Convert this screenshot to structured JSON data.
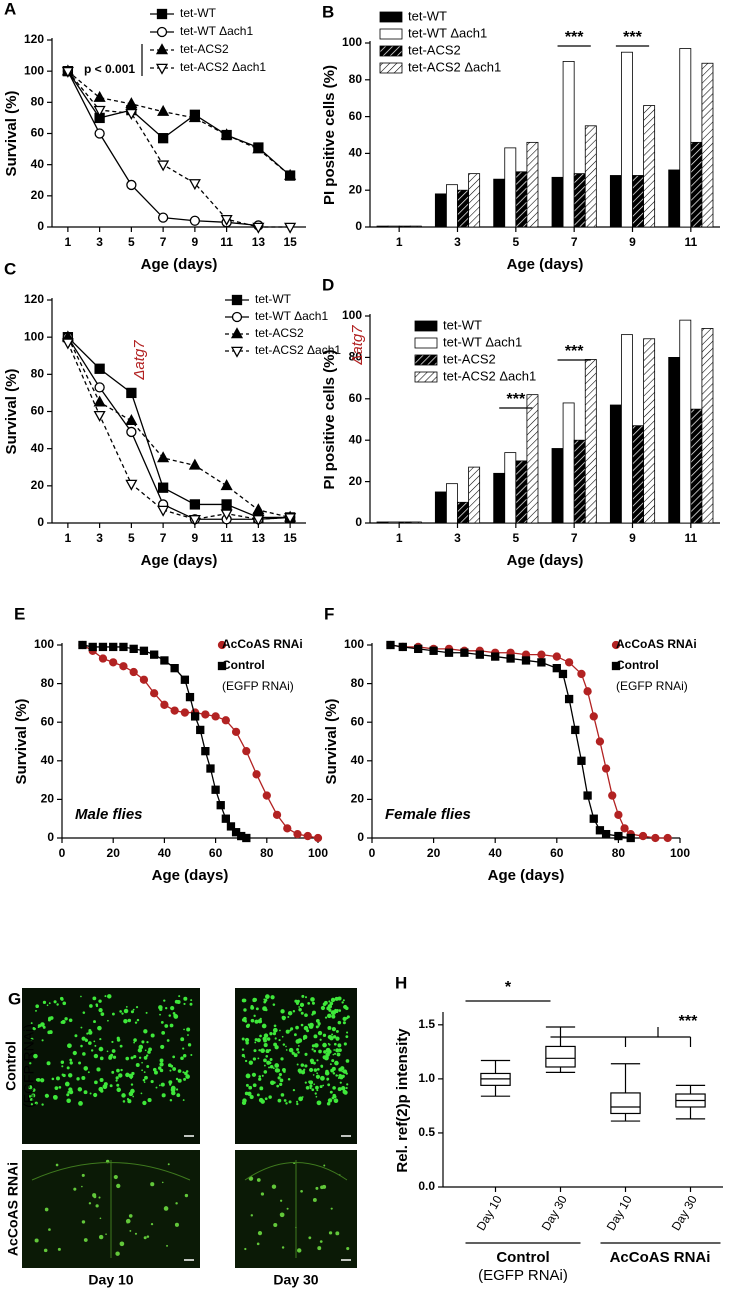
{
  "chart_data": [
    {
      "type": "line",
      "panel_label": "A",
      "x_label": "Age (days)",
      "y_label": "Survival (%)",
      "annotation": "p < 0.001",
      "x": [
        1,
        3,
        5,
        7,
        9,
        11,
        13,
        15
      ],
      "xlim": [
        0,
        16
      ],
      "xticks": [
        1,
        3,
        5,
        7,
        9,
        11,
        13,
        15
      ],
      "ylim": [
        0,
        120
      ],
      "yticks": [
        0,
        20,
        40,
        60,
        80,
        100,
        120
      ],
      "series": [
        {
          "name": "tet-WT",
          "color": "#000000",
          "marker": "square",
          "filled": true,
          "dash": "solid",
          "values": [
            100,
            70,
            75,
            57,
            72,
            59,
            51,
            33
          ]
        },
        {
          "name": "tet-WT Δach1",
          "color": "#000000",
          "marker": "circle",
          "filled": false,
          "dash": "solid",
          "values": [
            100,
            60,
            27,
            6,
            4,
            3,
            1,
            null
          ]
        },
        {
          "name": "tet-ACS2",
          "color": "#000000",
          "marker": "triangle",
          "filled": true,
          "dash": "dashed",
          "values": [
            100,
            83,
            79,
            74,
            70,
            59,
            50,
            33
          ]
        },
        {
          "name": "tet-ACS2 Δach1",
          "color": "#000000",
          "marker": "triangle-down",
          "filled": false,
          "dash": "dashed",
          "values": [
            100,
            75,
            73,
            40,
            28,
            5,
            0,
            0
          ]
        }
      ]
    },
    {
      "type": "bar",
      "panel_label": "B",
      "x_label": "Age (days)",
      "y_label": "PI positive cells (%)",
      "annotations": [
        "***",
        "***"
      ],
      "categories": [
        "1",
        "3",
        "5",
        "7",
        "9",
        "11"
      ],
      "ylim": [
        0,
        100
      ],
      "yticks": [
        0,
        20,
        40,
        60,
        80,
        100
      ],
      "series": [
        {
          "name": "tet-WT",
          "color": "#000000",
          "pattern": "solid",
          "values": [
            0.5,
            18,
            26,
            27,
            28,
            31
          ]
        },
        {
          "name": "tet-WT Δach1",
          "color": "#ffffff",
          "pattern": "solid",
          "values": [
            0.5,
            23,
            43,
            90,
            95,
            97
          ]
        },
        {
          "name": "tet-ACS2",
          "color": "#000000",
          "pattern": "hatch-dark",
          "values": [
            0.5,
            20,
            30,
            29,
            28,
            46
          ]
        },
        {
          "name": "tet-ACS2 Δach1",
          "color": "#ffffff",
          "pattern": "hatch-light",
          "values": [
            0.5,
            29,
            46,
            55,
            66,
            89
          ]
        }
      ]
    },
    {
      "type": "line",
      "panel_label": "C",
      "x_label": "Age (days)",
      "y_label": "Survival (%)",
      "annotation": "Δatg7",
      "annotation_color": "#b22222",
      "x": [
        1,
        3,
        5,
        7,
        9,
        11,
        13,
        15
      ],
      "xlim": [
        0,
        16
      ],
      "xticks": [
        1,
        3,
        5,
        7,
        9,
        11,
        13,
        15
      ],
      "ylim": [
        0,
        120
      ],
      "yticks": [
        0,
        20,
        40,
        60,
        80,
        100,
        120
      ],
      "series": [
        {
          "name": "tet-WT",
          "color": "#000000",
          "marker": "square",
          "filled": true,
          "dash": "solid",
          "values": [
            100,
            83,
            70,
            19,
            10,
            10,
            3,
            3
          ]
        },
        {
          "name": "tet-WT Δach1",
          "color": "#000000",
          "marker": "circle",
          "filled": false,
          "dash": "solid",
          "values": [
            100,
            73,
            49,
            10,
            2,
            2,
            2,
            3
          ]
        },
        {
          "name": "tet-ACS2",
          "color": "#000000",
          "marker": "triangle",
          "filled": true,
          "dash": "dashed",
          "values": [
            100,
            65,
            55,
            35,
            31,
            20,
            7,
            3
          ]
        },
        {
          "name": "tet-ACS2 Δach1",
          "color": "#000000",
          "marker": "triangle-down",
          "filled": false,
          "dash": "dashed",
          "values": [
            97,
            58,
            21,
            7,
            2,
            5,
            2,
            3
          ]
        }
      ]
    },
    {
      "type": "bar",
      "panel_label": "D",
      "x_label": "Age (days)",
      "y_label": "PI positive cells (%)",
      "annotation": "Δatg7",
      "annotation_color": "#b22222",
      "annotations": [
        "***",
        "***"
      ],
      "categories": [
        "1",
        "3",
        "5",
        "7",
        "9",
        "11"
      ],
      "ylim": [
        0,
        100
      ],
      "yticks": [
        0,
        20,
        40,
        60,
        80,
        100
      ],
      "series": [
        {
          "name": "tet-WT",
          "color": "#000000",
          "pattern": "solid",
          "values": [
            0.5,
            15,
            24,
            36,
            57,
            80
          ]
        },
        {
          "name": "tet-WT Δach1",
          "color": "#ffffff",
          "pattern": "solid",
          "values": [
            0.5,
            19,
            34,
            58,
            91,
            98
          ]
        },
        {
          "name": "tet-ACS2",
          "color": "#000000",
          "pattern": "hatch-dark",
          "values": [
            0.5,
            10,
            30,
            40,
            47,
            55
          ]
        },
        {
          "name": "tet-ACS2 Δach1",
          "color": "#ffffff",
          "pattern": "hatch-light",
          "values": [
            0.5,
            27,
            62,
            79,
            89,
            94
          ]
        }
      ]
    },
    {
      "type": "line",
      "panel_label": "E",
      "x_label": "Age (days)",
      "y_label": "Survival (%)",
      "annotation": "Male flies",
      "legend_note": "(EGFP RNAi)",
      "xlim": [
        0,
        100
      ],
      "xticks": [
        0,
        20,
        40,
        60,
        80,
        100
      ],
      "ylim": [
        0,
        100
      ],
      "yticks": [
        0,
        20,
        40,
        60,
        80,
        100
      ],
      "series": [
        {
          "name": "AcCoAS RNAi",
          "color": "#b22222",
          "marker": "circle",
          "filled": true,
          "dash": "solid",
          "x": [
            8,
            12,
            16,
            20,
            24,
            28,
            32,
            36,
            40,
            44,
            48,
            52,
            56,
            60,
            64,
            68,
            72,
            76,
            80,
            84,
            88,
            92,
            96,
            100
          ],
          "values": [
            100,
            97,
            93,
            91,
            89,
            86,
            82,
            75,
            69,
            66,
            65,
            65,
            64,
            63,
            61,
            55,
            45,
            33,
            22,
            12,
            5,
            2,
            1,
            0
          ]
        },
        {
          "name": "Control",
          "color": "#000000",
          "marker": "square",
          "filled": true,
          "dash": "solid",
          "x": [
            8,
            12,
            16,
            20,
            24,
            28,
            32,
            36,
            40,
            44,
            48,
            50,
            52,
            54,
            56,
            58,
            60,
            62,
            64,
            66,
            68,
            70,
            72
          ],
          "values": [
            100,
            99,
            99,
            99,
            99,
            98,
            97,
            95,
            92,
            88,
            82,
            73,
            63,
            56,
            45,
            36,
            25,
            17,
            10,
            6,
            3,
            1,
            0
          ]
        }
      ]
    },
    {
      "type": "line",
      "panel_label": "F",
      "x_label": "Age (days)",
      "y_label": "Survival (%)",
      "annotation": "Female flies",
      "legend_note": "(EGFP RNAi)",
      "xlim": [
        0,
        100
      ],
      "xticks": [
        0,
        20,
        40,
        60,
        80,
        100
      ],
      "ylim": [
        0,
        100
      ],
      "yticks": [
        0,
        20,
        40,
        60,
        80,
        100
      ],
      "series": [
        {
          "name": "AcCoAS RNAi",
          "color": "#b22222",
          "marker": "circle",
          "filled": true,
          "dash": "solid",
          "x": [
            6,
            10,
            15,
            20,
            25,
            30,
            35,
            40,
            45,
            50,
            55,
            60,
            64,
            68,
            70,
            72,
            74,
            76,
            78,
            80,
            82,
            84,
            88,
            92,
            96
          ],
          "values": [
            100,
            99,
            99,
            98,
            98,
            97,
            97,
            96,
            96,
            95,
            95,
            94,
            91,
            85,
            76,
            63,
            50,
            36,
            22,
            12,
            5,
            2,
            1,
            0,
            0
          ]
        },
        {
          "name": "Control",
          "color": "#000000",
          "marker": "square",
          "filled": true,
          "dash": "solid",
          "x": [
            6,
            10,
            15,
            20,
            25,
            30,
            35,
            40,
            45,
            50,
            55,
            60,
            62,
            64,
            66,
            68,
            70,
            72,
            74,
            76,
            80,
            84
          ],
          "values": [
            100,
            99,
            98,
            97,
            96,
            96,
            95,
            94,
            93,
            92,
            91,
            88,
            85,
            72,
            56,
            40,
            22,
            10,
            4,
            2,
            1,
            0
          ]
        }
      ]
    },
    {
      "type": "box",
      "panel_label": "H",
      "y_label": "Rel. ref(2)p intensity",
      "annotations": [
        "*",
        "***"
      ],
      "categories": [
        "Day 10",
        "Day 30",
        "Day 10",
        "Day 30"
      ],
      "group_labels": [
        "Control",
        "(EGFP RNAi)",
        "AcCoAS RNAi"
      ],
      "ylim": [
        0,
        1.6
      ],
      "yticks": [
        {
          "value": 0,
          "label": "0.0"
        },
        0.5,
        {
          "value": 1,
          "label": "1.0"
        },
        1.5
      ],
      "boxes": [
        {
          "min": 0.84,
          "q1": 0.94,
          "median": 1.0,
          "q3": 1.05,
          "max": 1.17
        },
        {
          "min": 1.06,
          "q1": 1.11,
          "median": 1.19,
          "q3": 1.3,
          "max": 1.48
        },
        {
          "min": 0.61,
          "q1": 0.68,
          "median": 0.74,
          "q3": 0.87,
          "max": 1.14
        },
        {
          "min": 0.63,
          "q1": 0.74,
          "median": 0.8,
          "q3": 0.86,
          "max": 0.94
        }
      ]
    }
  ],
  "image_panel": {
    "panel_label": "G",
    "row_labels": [
      "Control",
      "(EGFP RNAi)",
      "AcCoAS RNAi"
    ],
    "column_labels": [
      "Day 10",
      "Day 30"
    ]
  }
}
